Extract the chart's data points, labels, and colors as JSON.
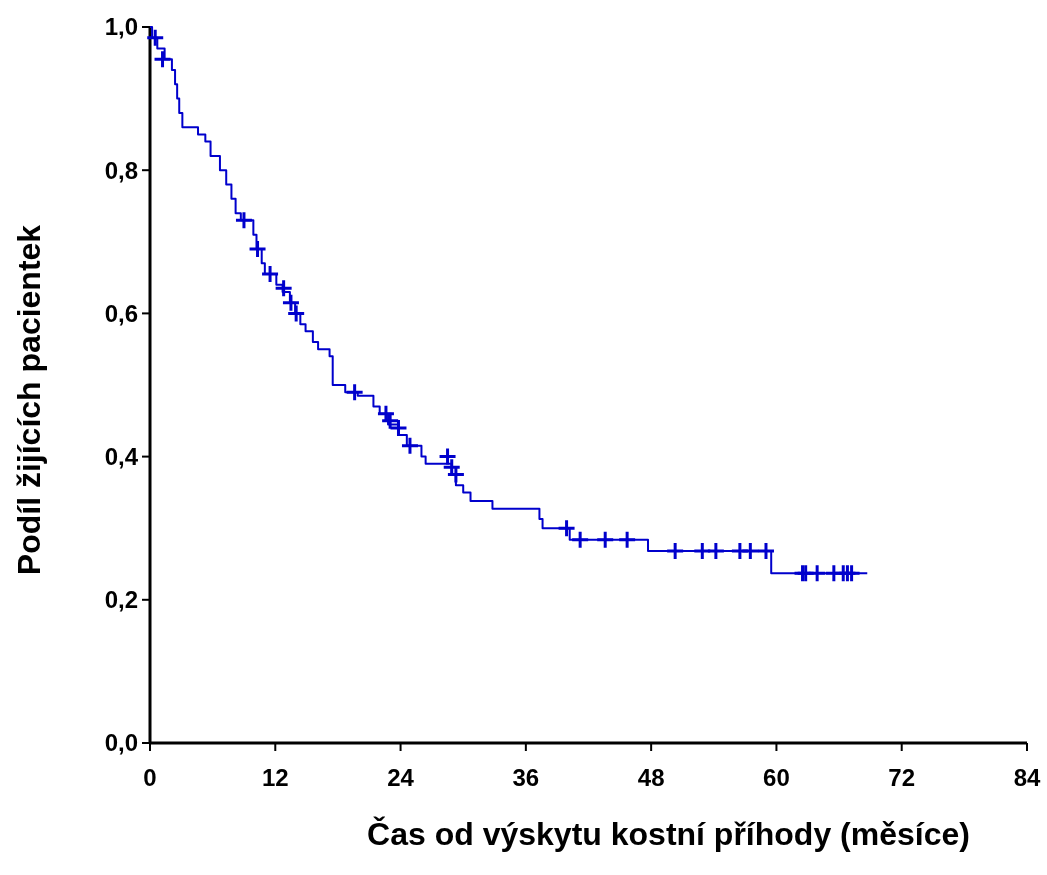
{
  "chart_data": {
    "type": "step",
    "xlabel": "Čas od výskytu kostní příhody (měsíce)",
    "ylabel": "Podíl žijících pacientek",
    "xlim": [
      0,
      84
    ],
    "xticks": [
      0,
      12,
      24,
      36,
      48,
      60,
      72,
      84
    ],
    "ylim": [
      0,
      1
    ],
    "yticks": [
      {
        "value": 0,
        "label": "0,0"
      },
      {
        "value": 0.2,
        "label": "0,2"
      },
      {
        "value": 0.4,
        "label": "0,4"
      },
      {
        "value": 0.6,
        "label": "0,6"
      },
      {
        "value": 0.8,
        "label": "0,8"
      },
      {
        "value": 1,
        "label": "1,0"
      }
    ],
    "grid": false,
    "series": [
      {
        "color": "#0000cc",
        "x": [
          0,
          0.2,
          0.7,
          1.4,
          2.1,
          2.4,
          2.6,
          2.8,
          3.1,
          4.6,
          5.3,
          5.8,
          6.7,
          7.3,
          7.8,
          8.2,
          8.7,
          9.9,
          10.2,
          10.7,
          11.0,
          12.1,
          12.7,
          13.4,
          13.9,
          14.4,
          14.9,
          15.6,
          16.1,
          17.2,
          17.5,
          18.7,
          19.9,
          21.4,
          22.0,
          22.8,
          23.8,
          24.6,
          26.0,
          26.4,
          28.9,
          29.3,
          30.0,
          30.7,
          32.8,
          37.3,
          37.6,
          40.2,
          47.7,
          59.5,
          68.7
        ],
        "values": [
          1.0,
          0.985,
          0.97,
          0.955,
          0.94,
          0.92,
          0.9,
          0.88,
          0.86,
          0.85,
          0.84,
          0.82,
          0.8,
          0.78,
          0.76,
          0.74,
          0.73,
          0.71,
          0.69,
          0.67,
          0.655,
          0.64,
          0.63,
          0.615,
          0.6,
          0.585,
          0.575,
          0.56,
          0.55,
          0.54,
          0.5,
          0.49,
          0.485,
          0.47,
          0.46,
          0.445,
          0.43,
          0.415,
          0.4,
          0.39,
          0.375,
          0.36,
          0.35,
          0.338,
          0.327,
          0.313,
          0.3,
          0.284,
          0.268,
          0.237,
          0.237
        ]
      },
      {
        "type": "scatter",
        "marker": "cross",
        "color": "#0000cc",
        "x": [
          0.5,
          1.2,
          9.0,
          10.3,
          11.5,
          12.8,
          13.5,
          14.0,
          19.6,
          22.6,
          23.0,
          23.8,
          24.9,
          28.5,
          28.9,
          29.3,
          39.9,
          41.2,
          43.6,
          45.7,
          50.3,
          52.9,
          54.2,
          56.5,
          57.5,
          59.0,
          62.5,
          62.8,
          63.9,
          65.5,
          66.4,
          66.8,
          67.2
        ],
        "values": [
          0.985,
          0.955,
          0.73,
          0.69,
          0.655,
          0.635,
          0.615,
          0.6,
          0.49,
          0.46,
          0.45,
          0.44,
          0.415,
          0.4,
          0.385,
          0.375,
          0.3,
          0.284,
          0.284,
          0.284,
          0.268,
          0.268,
          0.268,
          0.268,
          0.268,
          0.268,
          0.237,
          0.237,
          0.237,
          0.237,
          0.237,
          0.237,
          0.237
        ]
      }
    ]
  }
}
